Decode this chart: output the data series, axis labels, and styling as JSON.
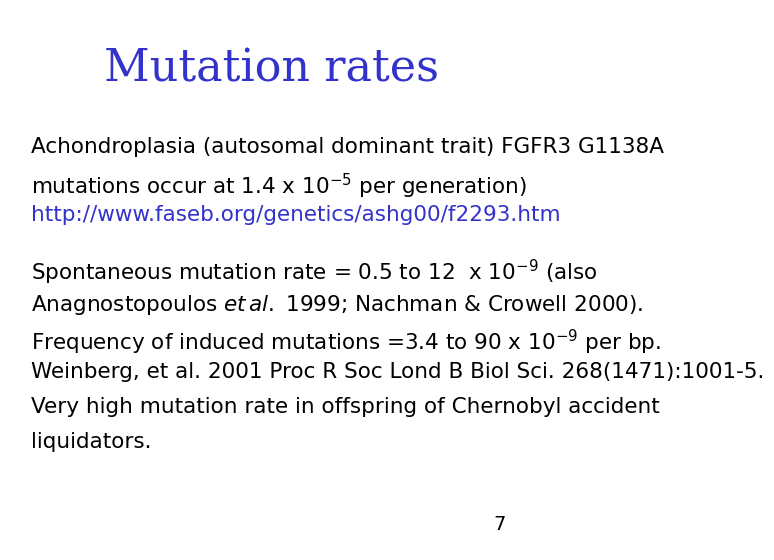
{
  "title": "Mutation rates",
  "title_color": "#3333cc",
  "title_fontsize": 32,
  "background_color": "#ffffff",
  "text_color": "#000000",
  "link_color": "#3333cc",
  "page_number": "7",
  "paragraph1_line1": "Achondroplasia (autosomal dominant trait) FGFR3 G1138A",
  "paragraph1_line2_before": "mutations occur at 1.4 x 10",
  "paragraph1_line2_exp": "-5",
  "paragraph1_line2_after": " per generation)",
  "paragraph1_link": "http://www.faseb.org/genetics/ashg00/f2293.htm",
  "paragraph2_line1_before": "Spontaneous mutation rate = 0.5 to 12  x 10",
  "paragraph2_line1_exp": "-9",
  "paragraph2_line1_after": " (also",
  "paragraph2_line2_before": "Anagnostopoulos ",
  "paragraph2_line2_italic": "et al.",
  "paragraph2_line2_after": " 1999; Nachman & Crowell 2000).",
  "paragraph2_line3_before": "Frequency of induced mutations =3.4 to 90 x 10",
  "paragraph2_line3_exp": "-9",
  "paragraph2_line3_after": " per bp.",
  "paragraph2_line4": "Weinberg, et al. 2001 Proc R Soc Lond B Biol Sci. 268(1471):1001-5.",
  "paragraph2_line5": "Very high mutation rate in offspring of Chernobyl accident",
  "paragraph2_line6": "liquidators.",
  "body_fontsize": 15.5,
  "page_fontsize": 14
}
